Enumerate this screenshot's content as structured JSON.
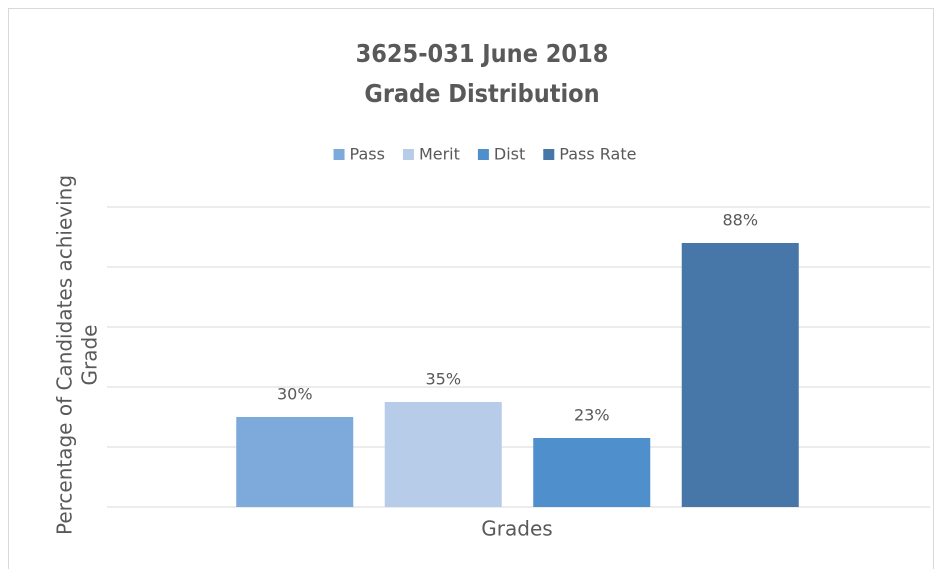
{
  "chart_data": {
    "type": "bar",
    "title": [
      "3625-031 June 2018",
      "Grade Distribution"
    ],
    "xlabel": "Grades",
    "ylabel": [
      "Percentage of Candidates achieving",
      "Grade"
    ],
    "categories": [
      null
    ],
    "series": [
      {
        "name": "Pass",
        "color": "#7eaadb",
        "values": [
          30
        ],
        "value_labels": [
          "30%"
        ]
      },
      {
        "name": "Merit",
        "color": "#b7cce9",
        "values": [
          35
        ],
        "value_labels": [
          "35%"
        ]
      },
      {
        "name": "Dist",
        "color": "#4f8fcb",
        "values": [
          23
        ],
        "value_labels": [
          "23%"
        ]
      },
      {
        "name": "Pass Rate",
        "color": "#4677a8",
        "values": [
          88
        ],
        "value_labels": [
          "88%"
        ]
      }
    ],
    "ylim": [
      0,
      100
    ],
    "yticks": [
      0,
      20,
      40,
      60,
      80,
      100
    ],
    "grid": true,
    "legend": "top"
  }
}
